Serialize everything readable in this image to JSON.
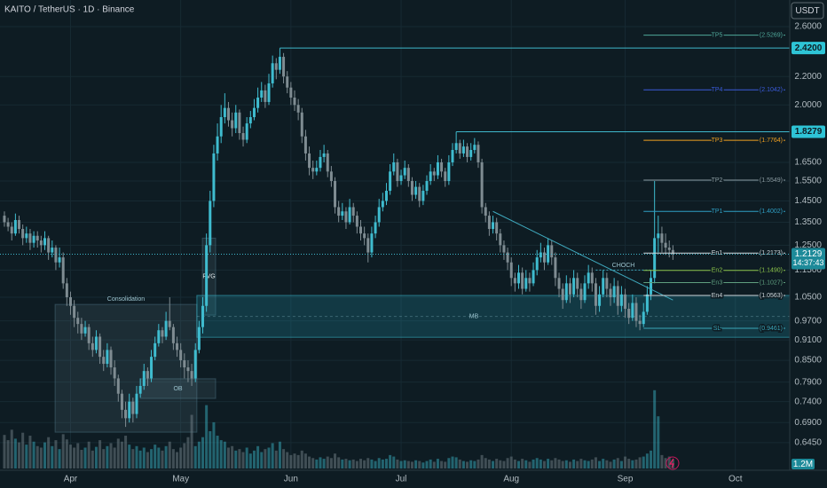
{
  "chart_data": {
    "type": "candlestick",
    "title": "KAITO / TetherUS · 1D · Binance",
    "currency": "USDT",
    "log_scale": true,
    "grid": true,
    "up_color": "#3fbccf",
    "down_color": "#7f8c92",
    "xlim": [
      -1.2,
      213.8
    ],
    "ylim": [
      0.588,
      2.843
    ],
    "volume_lim": [
      0,
      20
    ],
    "xticks": [
      {
        "value": 18,
        "label": "Apr"
      },
      {
        "value": 48,
        "label": "May"
      },
      {
        "value": 78,
        "label": "Jun"
      },
      {
        "value": 108,
        "label": "Jul"
      },
      {
        "value": 138,
        "label": "Aug"
      },
      {
        "value": 169,
        "label": "Sep"
      },
      {
        "value": 199,
        "label": "Oct"
      }
    ],
    "yticks": [
      {
        "value": 2.6,
        "label": "2.6000"
      },
      {
        "value": 2.2,
        "label": "2.2000"
      },
      {
        "value": 2.0,
        "label": "2.0000"
      },
      {
        "value": 1.65,
        "label": "1.6500"
      },
      {
        "value": 1.55,
        "label": "1.5500"
      },
      {
        "value": 1.45,
        "label": "1.4500"
      },
      {
        "value": 1.35,
        "label": "1.3500"
      },
      {
        "value": 1.25,
        "label": "1.2500"
      },
      {
        "value": 1.15,
        "label": "1.1500"
      },
      {
        "value": 1.05,
        "label": "1.0500"
      },
      {
        "value": 0.97,
        "label": "0.9700"
      },
      {
        "value": 0.91,
        "label": "0.9100"
      },
      {
        "value": 0.85,
        "label": "0.8500"
      },
      {
        "value": 0.79,
        "label": "0.7900"
      },
      {
        "value": 0.74,
        "label": "0.7400"
      },
      {
        "value": 0.69,
        "label": "0.6900"
      },
      {
        "value": 0.645,
        "label": "0.6450"
      }
    ],
    "ohlc": [
      [
        1.38,
        1.4,
        1.33,
        1.35
      ],
      [
        1.35,
        1.37,
        1.31,
        1.33
      ],
      [
        1.33,
        1.35,
        1.27,
        1.3
      ],
      [
        1.3,
        1.39,
        1.29,
        1.36
      ],
      [
        1.36,
        1.38,
        1.3,
        1.32
      ],
      [
        1.32,
        1.34,
        1.25,
        1.28
      ],
      [
        1.28,
        1.33,
        1.26,
        1.3
      ],
      [
        1.3,
        1.32,
        1.23,
        1.26
      ],
      [
        1.26,
        1.31,
        1.24,
        1.29
      ],
      [
        1.29,
        1.31,
        1.24,
        1.27
      ],
      [
        1.27,
        1.29,
        1.22,
        1.25
      ],
      [
        1.25,
        1.31,
        1.23,
        1.28
      ],
      [
        1.28,
        1.29,
        1.19,
        1.22
      ],
      [
        1.22,
        1.27,
        1.2,
        1.24
      ],
      [
        1.24,
        1.25,
        1.15,
        1.18
      ],
      [
        1.18,
        1.24,
        1.16,
        1.2
      ],
      [
        1.2,
        1.22,
        1.08,
        1.1
      ],
      [
        1.1,
        1.12,
        1.02,
        1.05
      ],
      [
        1.05,
        1.07,
        0.99,
        1.02
      ],
      [
        1.02,
        1.04,
        0.95,
        0.98
      ],
      [
        0.98,
        1.0,
        0.93,
        0.96
      ],
      [
        0.96,
        0.98,
        0.91,
        0.93
      ],
      [
        0.93,
        0.97,
        0.92,
        0.95
      ],
      [
        0.95,
        0.96,
        0.88,
        0.9
      ],
      [
        0.9,
        0.92,
        0.86,
        0.88
      ],
      [
        0.88,
        0.94,
        0.87,
        0.92
      ],
      [
        0.92,
        0.93,
        0.84,
        0.86
      ],
      [
        0.86,
        0.88,
        0.82,
        0.84
      ],
      [
        0.84,
        0.9,
        0.83,
        0.88
      ],
      [
        0.88,
        0.89,
        0.81,
        0.83
      ],
      [
        0.83,
        0.85,
        0.78,
        0.8
      ],
      [
        0.8,
        0.81,
        0.74,
        0.76
      ],
      [
        0.76,
        0.77,
        0.7,
        0.72
      ],
      [
        0.72,
        0.74,
        0.68,
        0.7
      ],
      [
        0.7,
        0.76,
        0.69,
        0.74
      ],
      [
        0.74,
        0.75,
        0.69,
        0.71
      ],
      [
        0.71,
        0.78,
        0.7,
        0.76
      ],
      [
        0.76,
        0.8,
        0.75,
        0.78
      ],
      [
        0.78,
        0.84,
        0.77,
        0.82
      ],
      [
        0.82,
        0.83,
        0.78,
        0.8
      ],
      [
        0.8,
        0.88,
        0.79,
        0.86
      ],
      [
        0.86,
        0.92,
        0.85,
        0.9
      ],
      [
        0.9,
        0.96,
        0.89,
        0.94
      ],
      [
        0.94,
        0.95,
        0.9,
        0.92
      ],
      [
        0.92,
        1.0,
        0.91,
        0.97
      ],
      [
        0.97,
        1.05,
        0.94,
        0.95
      ],
      [
        0.95,
        0.96,
        0.88,
        0.9
      ],
      [
        0.9,
        0.92,
        0.86,
        0.88
      ],
      [
        0.88,
        0.9,
        0.83,
        0.85
      ],
      [
        0.85,
        0.87,
        0.8,
        0.83
      ],
      [
        0.83,
        0.85,
        0.79,
        0.82
      ],
      [
        0.82,
        0.84,
        0.78,
        0.8
      ],
      [
        0.8,
        0.9,
        0.79,
        0.88
      ],
      [
        0.88,
        0.97,
        0.87,
        0.95
      ],
      [
        0.95,
        1.05,
        0.93,
        1.02
      ],
      [
        1.02,
        1.3,
        1.0,
        1.25
      ],
      [
        1.25,
        1.5,
        1.22,
        1.45
      ],
      [
        1.45,
        1.75,
        1.42,
        1.7
      ],
      [
        1.7,
        1.88,
        1.66,
        1.8
      ],
      [
        1.8,
        2.0,
        1.76,
        1.92
      ],
      [
        1.92,
        2.08,
        1.88,
        1.98
      ],
      [
        1.98,
        2.02,
        1.86,
        1.9
      ],
      [
        1.9,
        1.95,
        1.8,
        1.85
      ],
      [
        1.85,
        2.0,
        1.82,
        1.95
      ],
      [
        1.95,
        1.97,
        1.78,
        1.82
      ],
      [
        1.82,
        1.86,
        1.74,
        1.78
      ],
      [
        1.78,
        1.92,
        1.76,
        1.88
      ],
      [
        1.88,
        1.96,
        1.85,
        1.92
      ],
      [
        1.92,
        2.04,
        1.9,
        1.98
      ],
      [
        1.98,
        2.12,
        1.95,
        2.05
      ],
      [
        2.05,
        2.16,
        2.02,
        2.1
      ],
      [
        2.1,
        2.14,
        1.98,
        2.02
      ],
      [
        2.02,
        2.22,
        2.0,
        2.15
      ],
      [
        2.15,
        2.36,
        2.12,
        2.3
      ],
      [
        2.3,
        2.34,
        2.18,
        2.25
      ],
      [
        2.25,
        2.42,
        2.22,
        2.35
      ],
      [
        2.35,
        2.38,
        2.15,
        2.2
      ],
      [
        2.2,
        2.24,
        2.08,
        2.12
      ],
      [
        2.12,
        2.16,
        2.0,
        2.05
      ],
      [
        2.05,
        2.1,
        1.96,
        2.0
      ],
      [
        2.0,
        2.04,
        1.9,
        1.95
      ],
      [
        1.95,
        1.98,
        1.76,
        1.8
      ],
      [
        1.8,
        1.84,
        1.66,
        1.7
      ],
      [
        1.7,
        1.74,
        1.58,
        1.62
      ],
      [
        1.62,
        1.66,
        1.56,
        1.6
      ],
      [
        1.6,
        1.66,
        1.58,
        1.62
      ],
      [
        1.62,
        1.72,
        1.6,
        1.68
      ],
      [
        1.68,
        1.75,
        1.65,
        1.7
      ],
      [
        1.7,
        1.72,
        1.57,
        1.6
      ],
      [
        1.6,
        1.63,
        1.52,
        1.55
      ],
      [
        1.55,
        1.57,
        1.39,
        1.42
      ],
      [
        1.42,
        1.45,
        1.35,
        1.38
      ],
      [
        1.38,
        1.44,
        1.36,
        1.4
      ],
      [
        1.4,
        1.42,
        1.32,
        1.35
      ],
      [
        1.35,
        1.46,
        1.34,
        1.42
      ],
      [
        1.42,
        1.44,
        1.35,
        1.38
      ],
      [
        1.38,
        1.4,
        1.3,
        1.33
      ],
      [
        1.33,
        1.36,
        1.27,
        1.3
      ],
      [
        1.3,
        1.33,
        1.25,
        1.28
      ],
      [
        1.28,
        1.3,
        1.18,
        1.22
      ],
      [
        1.22,
        1.33,
        1.2,
        1.3
      ],
      [
        1.3,
        1.38,
        1.28,
        1.35
      ],
      [
        1.35,
        1.46,
        1.33,
        1.42
      ],
      [
        1.42,
        1.49,
        1.4,
        1.45
      ],
      [
        1.45,
        1.54,
        1.43,
        1.5
      ],
      [
        1.5,
        1.64,
        1.48,
        1.6
      ],
      [
        1.6,
        1.7,
        1.58,
        1.65
      ],
      [
        1.65,
        1.67,
        1.52,
        1.55
      ],
      [
        1.55,
        1.61,
        1.53,
        1.58
      ],
      [
        1.58,
        1.66,
        1.56,
        1.62
      ],
      [
        1.62,
        1.64,
        1.52,
        1.55
      ],
      [
        1.55,
        1.57,
        1.45,
        1.48
      ],
      [
        1.48,
        1.55,
        1.46,
        1.52
      ],
      [
        1.52,
        1.54,
        1.42,
        1.45
      ],
      [
        1.45,
        1.53,
        1.43,
        1.5
      ],
      [
        1.5,
        1.58,
        1.48,
        1.55
      ],
      [
        1.55,
        1.64,
        1.53,
        1.6
      ],
      [
        1.6,
        1.62,
        1.55,
        1.58
      ],
      [
        1.58,
        1.69,
        1.56,
        1.65
      ],
      [
        1.65,
        1.67,
        1.57,
        1.6
      ],
      [
        1.6,
        1.62,
        1.52,
        1.55
      ],
      [
        1.55,
        1.69,
        1.53,
        1.65
      ],
      [
        1.65,
        1.76,
        1.63,
        1.72
      ],
      [
        1.72,
        1.8279,
        1.7,
        1.76
      ],
      [
        1.76,
        1.78,
        1.67,
        1.7
      ],
      [
        1.7,
        1.78,
        1.68,
        1.74
      ],
      [
        1.74,
        1.76,
        1.65,
        1.68
      ],
      [
        1.68,
        1.76,
        1.66,
        1.72
      ],
      [
        1.72,
        1.79,
        1.7,
        1.75
      ],
      [
        1.75,
        1.77,
        1.62,
        1.65
      ],
      [
        1.65,
        1.67,
        1.39,
        1.42
      ],
      [
        1.42,
        1.44,
        1.35,
        1.38
      ],
      [
        1.38,
        1.4,
        1.29,
        1.32
      ],
      [
        1.32,
        1.38,
        1.3,
        1.35
      ],
      [
        1.35,
        1.37,
        1.27,
        1.3
      ],
      [
        1.3,
        1.32,
        1.22,
        1.25
      ],
      [
        1.25,
        1.27,
        1.19,
        1.22
      ],
      [
        1.22,
        1.24,
        1.15,
        1.18
      ],
      [
        1.18,
        1.2,
        1.09,
        1.12
      ],
      [
        1.12,
        1.14,
        1.07,
        1.1
      ],
      [
        1.1,
        1.17,
        1.08,
        1.14
      ],
      [
        1.14,
        1.16,
        1.06,
        1.08
      ],
      [
        1.08,
        1.15,
        1.07,
        1.12
      ],
      [
        1.12,
        1.14,
        1.07,
        1.1
      ],
      [
        1.1,
        1.18,
        1.09,
        1.15
      ],
      [
        1.15,
        1.23,
        1.13,
        1.2
      ],
      [
        1.2,
        1.26,
        1.18,
        1.22
      ],
      [
        1.22,
        1.24,
        1.15,
        1.18
      ],
      [
        1.18,
        1.28,
        1.17,
        1.25
      ],
      [
        1.25,
        1.27,
        1.17,
        1.2
      ],
      [
        1.2,
        1.22,
        1.09,
        1.12
      ],
      [
        1.12,
        1.14,
        1.05,
        1.08
      ],
      [
        1.08,
        1.1,
        1.01,
        1.04
      ],
      [
        1.04,
        1.13,
        1.03,
        1.1
      ],
      [
        1.1,
        1.12,
        1.03,
        1.06
      ],
      [
        1.06,
        1.15,
        1.05,
        1.12
      ],
      [
        1.12,
        1.14,
        1.05,
        1.08
      ],
      [
        1.08,
        1.1,
        1.01,
        1.04
      ],
      [
        1.04,
        1.13,
        1.03,
        1.1
      ],
      [
        1.1,
        1.17,
        1.08,
        1.14
      ],
      [
        1.14,
        1.16,
        1.07,
        1.1
      ],
      [
        1.1,
        1.12,
        0.99,
        1.02
      ],
      [
        1.02,
        1.09,
        1.0,
        1.06
      ],
      [
        1.06,
        1.15,
        1.05,
        1.12
      ],
      [
        1.12,
        1.14,
        1.05,
        1.08
      ],
      [
        1.08,
        1.1,
        1.02,
        1.05
      ],
      [
        1.05,
        1.12,
        1.03,
        1.09
      ],
      [
        1.09,
        1.11,
        0.99,
        1.02
      ],
      [
        1.02,
        1.09,
        1.0,
        1.06
      ],
      [
        1.06,
        1.08,
        0.98,
        1.01
      ],
      [
        1.01,
        1.03,
        0.96,
        0.98
      ],
      [
        0.98,
        1.06,
        0.97,
        1.03
      ],
      [
        1.03,
        1.05,
        0.95,
        0.97
      ],
      [
        0.97,
        0.99,
        0.94,
        0.96
      ],
      [
        0.96,
        1.03,
        0.95,
        1.0
      ],
      [
        1.0,
        1.09,
        0.99,
        1.06
      ],
      [
        1.06,
        1.15,
        1.04,
        1.12
      ],
      [
        1.12,
        1.55,
        1.1,
        1.28
      ],
      [
        1.28,
        1.38,
        1.22,
        1.3
      ],
      [
        1.3,
        1.33,
        1.22,
        1.26
      ],
      [
        1.26,
        1.3,
        1.21,
        1.24
      ],
      [
        1.24,
        1.27,
        1.2,
        1.23
      ],
      [
        1.23,
        1.25,
        1.19,
        1.2129
      ]
    ],
    "volume": [
      4.5,
      3.8,
      5.2,
      4.0,
      3.5,
      4.8,
      3.2,
      4.4,
      3.6,
      3.0,
      2.8,
      3.5,
      4.2,
      3.0,
      3.8,
      2.6,
      4.6,
      3.9,
      3.2,
      2.8,
      3.4,
      2.5,
      2.8,
      3.6,
      2.4,
      2.9,
      3.8,
      2.6,
      3.0,
      3.4,
      2.8,
      4.0,
      3.6,
      4.4,
      3.2,
      2.6,
      3.0,
      2.4,
      2.8,
      2.2,
      2.6,
      3.2,
      2.8,
      2.4,
      3.0,
      3.6,
      2.6,
      2.2,
      2.8,
      3.4,
      4.2,
      7.2,
      3.0,
      3.6,
      4.2,
      8.5,
      5.0,
      6.2,
      4.4,
      3.8,
      3.6,
      2.8,
      3.0,
      2.4,
      2.6,
      2.2,
      2.8,
      2.0,
      2.4,
      3.0,
      2.2,
      2.6,
      2.8,
      3.4,
      2.4,
      3.6,
      2.6,
      2.2,
      1.8,
      2.0,
      1.8,
      2.4,
      2.0,
      1.6,
      1.4,
      1.2,
      1.5,
      1.3,
      1.6,
      1.4,
      2.0,
      1.5,
      1.2,
      1.3,
      1.1,
      1.2,
      1.0,
      1.3,
      1.1,
      1.4,
      1.2,
      1.0,
      1.4,
      1.2,
      1.3,
      1.8,
      1.6,
      1.2,
      1.0,
      1.1,
      1.0,
      0.9,
      1.1,
      1.0,
      0.8,
      1.0,
      1.2,
      0.9,
      1.3,
      1.0,
      0.9,
      1.4,
      1.6,
      1.5,
      1.2,
      1.0,
      0.9,
      1.1,
      1.0,
      1.2,
      1.8,
      1.4,
      1.2,
      1.0,
      1.3,
      1.1,
      1.0,
      1.4,
      1.6,
      1.2,
      1.0,
      1.3,
      1.1,
      0.9,
      1.2,
      1.4,
      1.2,
      1.0,
      1.3,
      1.1,
      1.4,
      1.2,
      1.0,
      1.1,
      0.9,
      1.2,
      1.0,
      1.3,
      1.1,
      1.0,
      1.2,
      1.5,
      1.0,
      1.3,
      1.1,
      0.9,
      1.2,
      1.4,
      1.0,
      1.6,
      1.3,
      1.1,
      1.2,
      1.5,
      1.6,
      2.0,
      2.4,
      10.5,
      7.0,
      1.8,
      1.4,
      1.6,
      1.2
    ],
    "volume_label": "1.2M",
    "countdown": "14:37:43",
    "price_lines": [
      {
        "value": 2.42,
        "label": "2.4200",
        "from": 75
      },
      {
        "value": 1.8279,
        "from": 123
      }
    ],
    "levels": [
      {
        "name": "TP5",
        "value": 2.5269,
        "label": "(2.5269)",
        "color": "#4fa89a"
      },
      {
        "name": "TP4",
        "value": 2.1042,
        "label": "(2.1042)",
        "color": "#3b5bdb"
      },
      {
        "name": "TP3",
        "value": 1.7764,
        "label": "(1.7764)",
        "color": "#f0a020"
      },
      {
        "name": "TP2",
        "value": 1.5549,
        "label": "(1.5549)",
        "color": "#8a9aa0"
      },
      {
        "name": "TP1",
        "value": 1.4002,
        "label": "(1.4002)",
        "color": "#2f9fc4"
      },
      {
        "name": "En1",
        "value": 1.2173,
        "label": "(1.2173)",
        "color": "#d0d8dc"
      },
      {
        "name": "En2",
        "value": 1.149,
        "label": "(1.1490)",
        "color": "#8bc34a"
      },
      {
        "name": "En3",
        "value": 1.1027,
        "label": "(1.1027)",
        "color": "#5f9f7f"
      },
      {
        "name": "En4",
        "value": 1.0563,
        "label": "(1.0563)",
        "color": "#d0d8dc"
      },
      {
        "name": "SL",
        "value": 0.9461,
        "label": "(0.9461)",
        "color": "#3aa6b9"
      }
    ],
    "zones": [
      {
        "label": "Consolidation",
        "top": 1.025,
        "bottom": 0.668,
        "from": 13.8,
        "to": 52.4
      },
      {
        "label": "OB",
        "top": 0.799,
        "bottom": 0.748,
        "from": 37,
        "to": 57.5
      },
      {
        "label": "FVG",
        "top": 1.28,
        "bottom": 0.989,
        "from": 53.9,
        "to": 57.5
      },
      {
        "label": "MB",
        "top": 1.0563,
        "bottom": 0.918,
        "from": 52.4,
        "to": 213.8
      }
    ],
    "trendline": {
      "label": "CHOCH",
      "from": [
        133,
        1.4
      ],
      "to": [
        182,
        1.04
      ],
      "level": 1.15,
      "level_from": 161,
      "level_to": 176
    }
  }
}
